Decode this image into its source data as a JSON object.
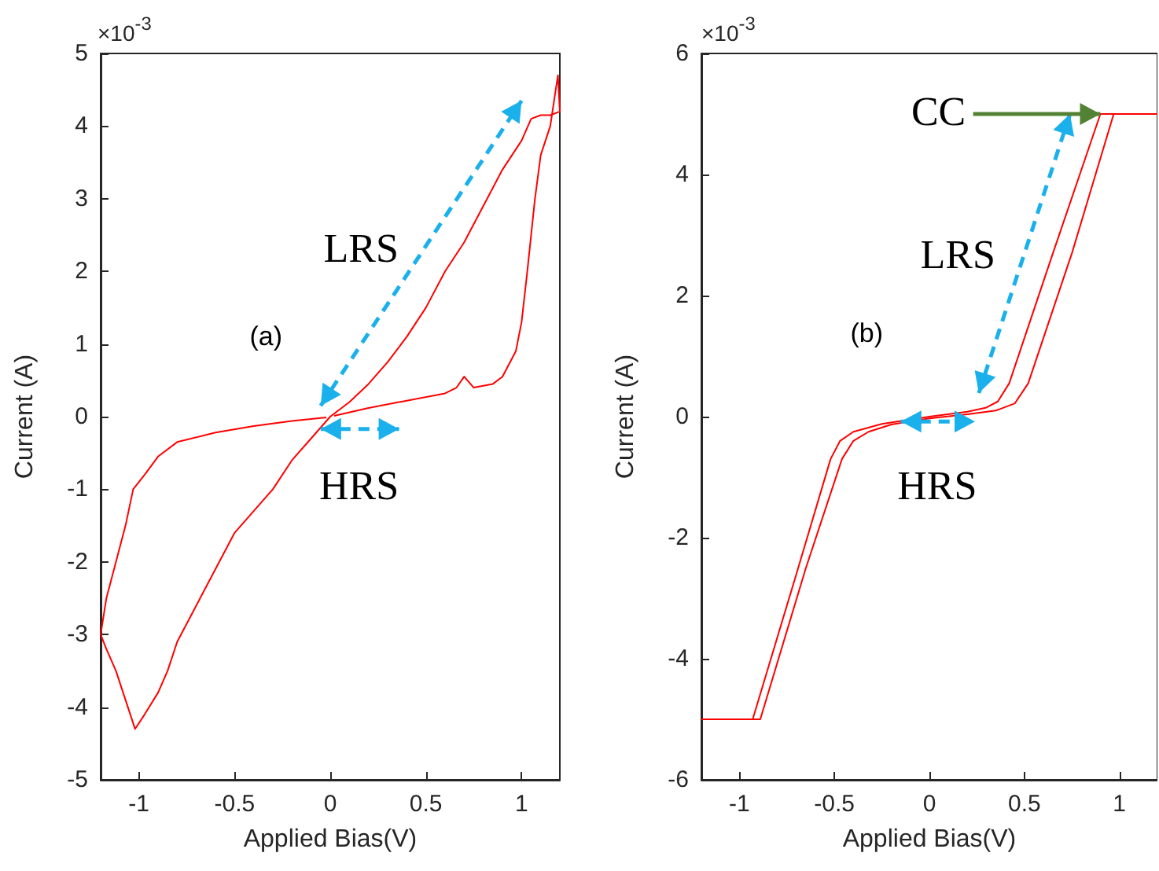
{
  "chart_data": [
    {
      "type": "line",
      "xlabel": "Applied Bias(V)",
      "ylabel": "Current (A)",
      "xlim": [
        -1.2,
        1.2
      ],
      "ylim": [
        -5,
        5
      ],
      "xticks": [
        -1,
        -0.5,
        0,
        0.5,
        1
      ],
      "yticks": [
        -5,
        -4,
        -3,
        -2,
        -1,
        0,
        1,
        2,
        3,
        4,
        5
      ],
      "marker": "none",
      "line_style": "solid",
      "annotations": [
        "×10$^{-3}$",
        "(a)",
        "LRS",
        "HRS"
      ],
      "series": [
        {
          "color": "#ff0000",
          "x": [
            0.02,
            0.2,
            0.4,
            0.6,
            0.66,
            0.7,
            0.75,
            0.85,
            0.9,
            0.97,
            1.0,
            1.03,
            1.07,
            1.1,
            1.15,
            1.19,
            1.2,
            1.15,
            1.1,
            1.05,
            1.0,
            0.9,
            0.8,
            0.7,
            0.6,
            0.5,
            0.4,
            0.3,
            0.2,
            0.1,
            0,
            -0.1,
            -0.2,
            -0.3,
            -0.4,
            -0.5,
            -0.6,
            -0.7,
            -0.8,
            -0.85,
            -0.9,
            -0.97,
            -1.02,
            -1.07,
            -1.12,
            -1.17,
            -1.2,
            -1.17,
            -1.12,
            -1.07,
            -1.03,
            -0.97,
            -0.9,
            -0.8,
            -0.6,
            -0.4,
            -0.2,
            -0.02
          ],
          "values": [
            0.01,
            0.12,
            0.22,
            0.32,
            0.4,
            0.55,
            0.4,
            0.45,
            0.55,
            0.9,
            1.3,
            2.0,
            3.0,
            3.6,
            4.0,
            4.7,
            4.2,
            4.15,
            4.15,
            4.1,
            3.8,
            3.4,
            2.9,
            2.4,
            2.0,
            1.5,
            1.1,
            0.75,
            0.45,
            0.2,
            0,
            -0.3,
            -0.6,
            -1.0,
            -1.3,
            -1.6,
            -2.1,
            -2.6,
            -3.1,
            -3.5,
            -3.8,
            -4.1,
            -4.3,
            -3.9,
            -3.5,
            -3.2,
            -3.0,
            -2.5,
            -2.0,
            -1.5,
            -1.0,
            -0.8,
            -0.55,
            -0.35,
            -0.22,
            -0.13,
            -0.06,
            -0.01
          ]
        }
      ]
    },
    {
      "type": "line",
      "xlabel": "Applied Bias(V)",
      "ylabel": "Current (A)",
      "xlim": [
        -1.2,
        1.2
      ],
      "ylim": [
        -6,
        6
      ],
      "xticks": [
        -1,
        -0.5,
        0,
        0.5,
        1
      ],
      "yticks": [
        -6,
        -4,
        -2,
        0,
        2,
        4,
        6
      ],
      "marker": "none",
      "line_style": "solid",
      "annotations": [
        "×10$^{-3}$",
        "(b)",
        {
          "text": "CC",
          "x": 0.9,
          "y": 5
        },
        "LRS",
        "HRS"
      ],
      "series": [
        {
          "color": "#ff0000",
          "x": [
            -1.2,
            -0.93,
            -0.7,
            -0.52,
            -0.47,
            -0.4,
            -0.25,
            0,
            0.2,
            0.3,
            0.36,
            0.42,
            0.65,
            0.9,
            1.2
          ],
          "values": [
            -5,
            -5,
            -2.6,
            -0.7,
            -0.4,
            -0.25,
            -0.12,
            0,
            0.08,
            0.15,
            0.25,
            0.55,
            2.7,
            5,
            5
          ]
        },
        {
          "color": "#ff0000",
          "x": [
            -1.2,
            -0.89,
            -0.65,
            -0.46,
            -0.4,
            -0.32,
            -0.2,
            0,
            0.2,
            0.35,
            0.45,
            0.52,
            0.75,
            0.97,
            1.2
          ],
          "values": [
            -5,
            -5,
            -2.5,
            -0.7,
            -0.4,
            -0.25,
            -0.13,
            -0.03,
            0.04,
            0.1,
            0.22,
            0.55,
            2.7,
            5,
            5
          ]
        }
      ]
    }
  ]
}
